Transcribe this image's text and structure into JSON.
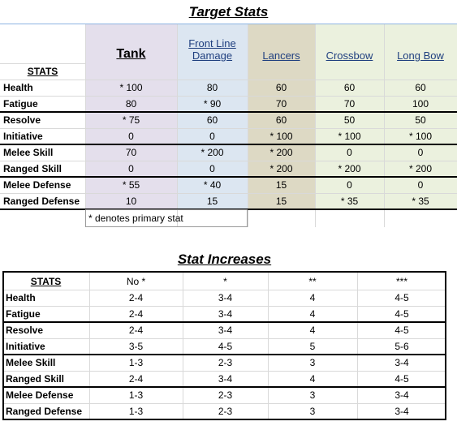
{
  "target_stats": {
    "title": "Target Stats",
    "stats_header": "STATS",
    "columns": [
      "Tank",
      "Front Line Damage",
      "Lancers",
      "Crossbow",
      "Long Bow"
    ],
    "rows": [
      {
        "label": "Health",
        "values": [
          "* 100",
          "80",
          "60",
          "60",
          "60"
        ]
      },
      {
        "label": "Fatigue",
        "values": [
          "80",
          "* 90",
          "70",
          "70",
          "100"
        ]
      },
      {
        "label": "Resolve",
        "values": [
          "* 75",
          "60",
          "60",
          "50",
          "50"
        ]
      },
      {
        "label": "Initiative",
        "values": [
          "0",
          "0",
          "* 100",
          "* 100",
          "* 100"
        ]
      },
      {
        "label": "Melee Skill",
        "values": [
          "70",
          "* 200",
          "* 200",
          "0",
          "0"
        ]
      },
      {
        "label": "Ranged Skill",
        "values": [
          "0",
          "0",
          "* 200",
          "* 200",
          "* 200"
        ]
      },
      {
        "label": "Melee Defense",
        "values": [
          "* 55",
          "* 40",
          "15",
          "0",
          "0"
        ]
      },
      {
        "label": "Ranged Defense",
        "values": [
          "10",
          "15",
          "15",
          "* 35",
          "* 35"
        ]
      }
    ],
    "note": "* denotes primary stat"
  },
  "stat_increases": {
    "title": "Stat Increases",
    "stats_header": "STATS",
    "columns": [
      "No *",
      "*",
      "**",
      "***"
    ],
    "rows": [
      {
        "label": "Health",
        "values": [
          "2-4",
          "3-4",
          "4",
          "4-5"
        ]
      },
      {
        "label": "Fatigue",
        "values": [
          "2-4",
          "3-4",
          "4",
          "4-5"
        ]
      },
      {
        "label": "Resolve",
        "values": [
          "2-4",
          "3-4",
          "4",
          "4-5"
        ]
      },
      {
        "label": "Initiative",
        "values": [
          "3-5",
          "4-5",
          "5",
          "5-6"
        ]
      },
      {
        "label": "Melee Skill",
        "values": [
          "1-3",
          "2-3",
          "3",
          "3-4"
        ]
      },
      {
        "label": "Ranged Skill",
        "values": [
          "2-4",
          "3-4",
          "4",
          "4-5"
        ]
      },
      {
        "label": "Melee Defense",
        "values": [
          "1-3",
          "2-3",
          "3",
          "3-4"
        ]
      },
      {
        "label": "Ranged Defense",
        "values": [
          "1-3",
          "2-3",
          "3",
          "3-4"
        ]
      }
    ]
  }
}
